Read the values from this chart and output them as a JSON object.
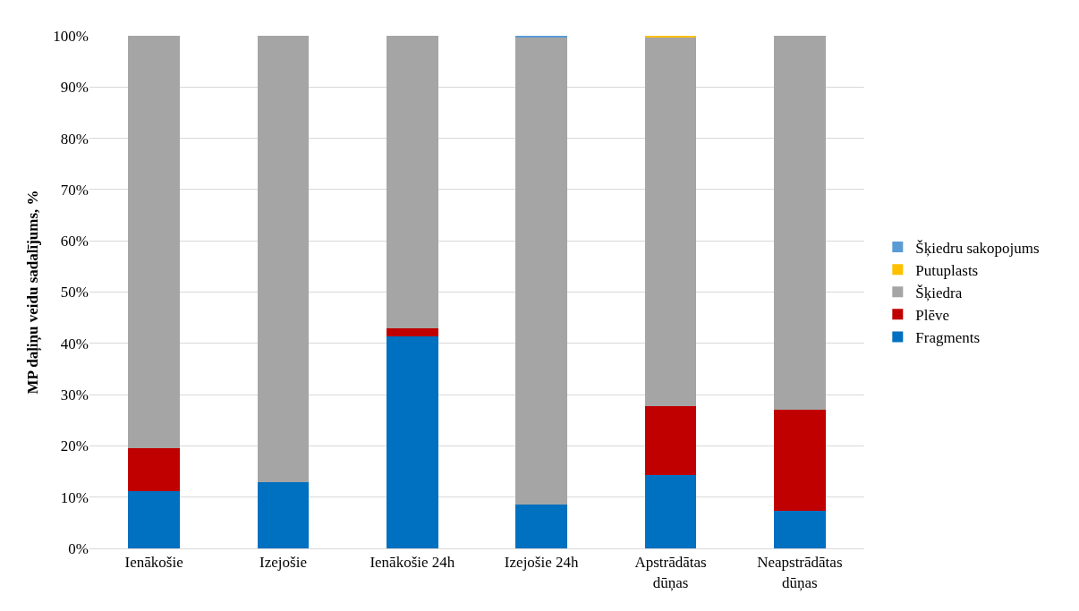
{
  "chart_data": {
    "type": "bar",
    "stacked": true,
    "ylabel": "MP daļiņu veidu sadalījums, %",
    "categories": [
      "Ienākošie",
      "Izejošie",
      "Ienākošie 24h",
      "Izejošie 24h",
      "Apstrādātas dūņas",
      "Neapstrādātas dūņas"
    ],
    "series": [
      {
        "name": "Fragments",
        "color": "#0070c0",
        "values": [
          11.2,
          13.0,
          41.3,
          8.5,
          14.3,
          7.3
        ]
      },
      {
        "name": "Plēve",
        "color": "#c00000",
        "values": [
          8.4,
          0,
          1.6,
          0,
          13.5,
          19.8
        ]
      },
      {
        "name": "Šķiedra",
        "color": "#a5a5a5",
        "values": [
          80.4,
          87.0,
          57.1,
          91.2,
          71.9,
          72.9
        ]
      },
      {
        "name": "Putuplasts",
        "color": "#ffc000",
        "values": [
          0,
          0,
          0,
          0,
          0.3,
          0
        ]
      },
      {
        "name": "Šķiedru sakopojums",
        "color": "#5b9bd5",
        "values": [
          0,
          0,
          0,
          0.3,
          0,
          0
        ]
      }
    ],
    "ylim": [
      0,
      100
    ],
    "yticks": [
      {
        "value": 0,
        "label": "0%"
      },
      {
        "value": 10,
        "label": "10%"
      },
      {
        "value": 20,
        "label": "20%"
      },
      {
        "value": 30,
        "label": "30%"
      },
      {
        "value": 40,
        "label": "40%"
      },
      {
        "value": 50,
        "label": "50%"
      },
      {
        "value": 60,
        "label": "60%"
      },
      {
        "value": 70,
        "label": "70%"
      },
      {
        "value": 80,
        "label": "80%"
      },
      {
        "value": 90,
        "label": "90%"
      },
      {
        "value": 100,
        "label": "100%"
      }
    ],
    "grid": "y",
    "legend": "right"
  }
}
